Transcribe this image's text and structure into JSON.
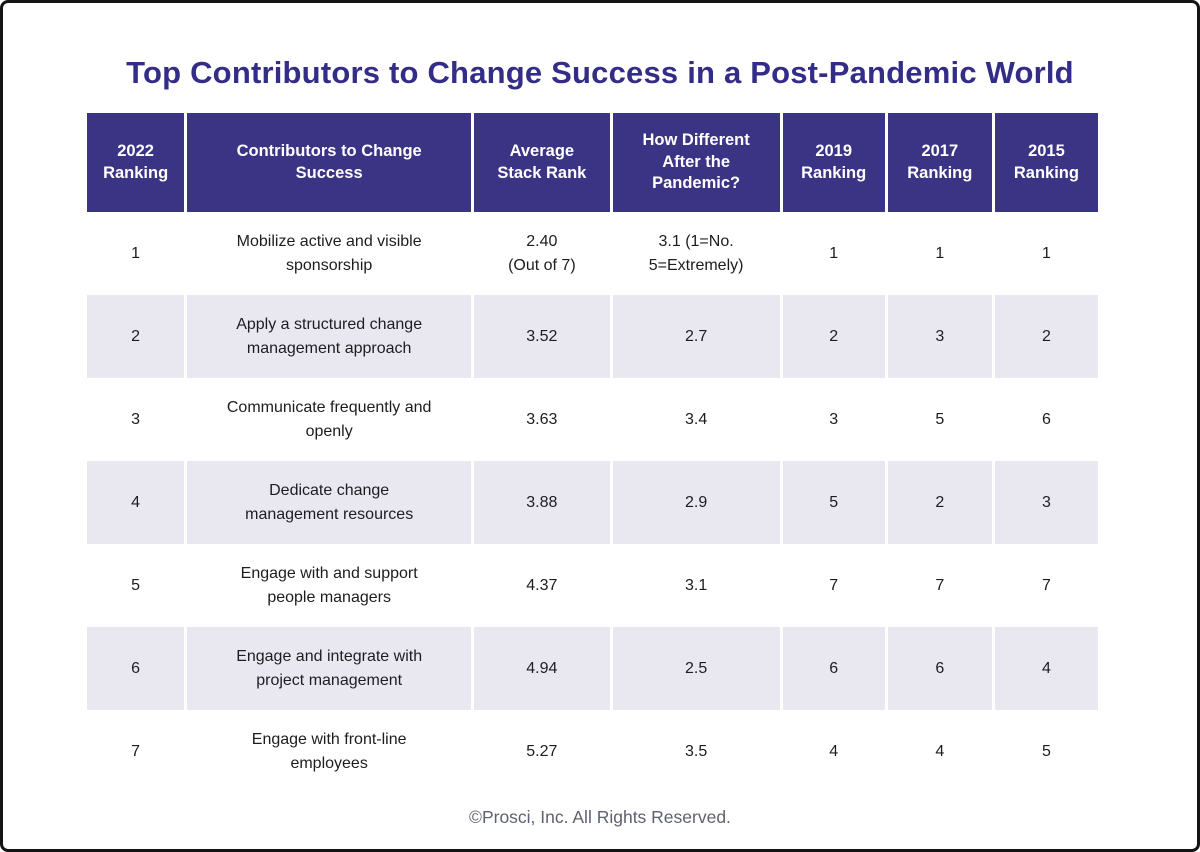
{
  "title": "Top Contributors to Change Success in a Post-Pandemic World",
  "footer": "©Prosci, Inc. All Rights Reserved.",
  "colors": {
    "title_text": "#332d87",
    "header_bg": "#3b3384",
    "header_text": "#ffffff",
    "stripe_bg": "#e9e8f1",
    "body_text": "#1d1d20",
    "footer_text": "#5d6271",
    "border": "#141414"
  },
  "chart_data": {
    "type": "table",
    "title": "Top Contributors to Change Success in a Post-Pandemic World",
    "columns": [
      "2022\nRanking",
      "Contributors to Change\nSuccess",
      "Average\nStack Rank",
      "How Different\nAfter the\nPandemic?",
      "2019\nRanking",
      "2017\nRanking",
      "2015\nRanking"
    ],
    "rows": [
      [
        "1",
        "Mobilize active and visible\nsponsorship",
        "2.40\n(Out of 7)",
        "3.1 (1=No.\n5=Extremely)",
        "1",
        "1",
        "1"
      ],
      [
        "2",
        "Apply a structured change\nmanagement approach",
        "3.52",
        "2.7",
        "2",
        "3",
        "2"
      ],
      [
        "3",
        "Communicate frequently and\nopenly",
        "3.63",
        "3.4",
        "3",
        "5",
        "6"
      ],
      [
        "4",
        "Dedicate change\nmanagement resources",
        "3.88",
        "2.9",
        "5",
        "2",
        "3"
      ],
      [
        "5",
        "Engage with and support\npeople managers",
        "4.37",
        "3.1",
        "7",
        "7",
        "7"
      ],
      [
        "6",
        "Engage and integrate with\nproject management",
        "4.94",
        "2.5",
        "6",
        "6",
        "4"
      ],
      [
        "7",
        "Engage with front-line\nemployees",
        "5.27",
        "3.5",
        "4",
        "4",
        "5"
      ]
    ]
  }
}
